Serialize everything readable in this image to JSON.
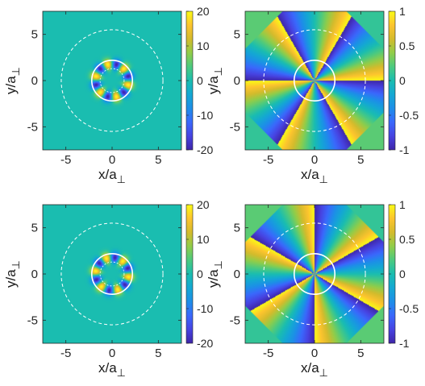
{
  "chart_data": [
    {
      "type": "heatmap",
      "field": "density",
      "xlabel": "x/a",
      "ylabel": "y/a",
      "axis_subscript": "⊥",
      "xlim": [
        -7.5,
        7.5
      ],
      "ylim": [
        -7.5,
        7.5
      ],
      "xticks": [
        -5,
        0,
        5
      ],
      "yticks": [
        -5,
        0,
        5
      ],
      "clim": [
        -20,
        20
      ],
      "colorbar_ticks": [
        20,
        10,
        0,
        -10,
        -20
      ],
      "lobes": 6,
      "ring_radius": 1.8,
      "phase_deg": 90,
      "solid_circle_radius": 2.2,
      "dashed_circle_radius": 5.5,
      "inner_dashed_radius": 1.3,
      "colormap": "parula"
    },
    {
      "type": "heatmap",
      "field": "phase",
      "xlabel": "x/a",
      "ylabel": "y/a",
      "axis_subscript": "⊥",
      "xlim": [
        -7.5,
        7.5
      ],
      "ylim": [
        -7.5,
        7.5
      ],
      "xticks": [
        -5,
        0,
        5
      ],
      "yticks": [
        -5,
        0,
        5
      ],
      "clim": [
        -1,
        1
      ],
      "colorbar_ticks": [
        1,
        0.5,
        0,
        -0.5,
        -1
      ],
      "branches": 6,
      "rotation_deg": 0,
      "solid_circle_radius": 2.2,
      "dashed_circle_radius": 5.5,
      "colormap": "parula"
    },
    {
      "type": "heatmap",
      "field": "density",
      "xlabel": "x/a",
      "ylabel": "y/a",
      "axis_subscript": "⊥",
      "xlim": [
        -7.5,
        7.5
      ],
      "ylim": [
        -7.5,
        7.5
      ],
      "xticks": [
        -5,
        0,
        5
      ],
      "yticks": [
        -5,
        0,
        5
      ],
      "clim": [
        -20,
        20
      ],
      "colorbar_ticks": [
        20,
        10,
        0,
        -10,
        -20
      ],
      "lobes": 6,
      "ring_radius": 1.8,
      "phase_deg": 60,
      "solid_circle_radius": 2.2,
      "dashed_circle_radius": 5.5,
      "inner_dashed_radius": 1.3,
      "colormap": "parula"
    },
    {
      "type": "heatmap",
      "field": "phase",
      "xlabel": "x/a",
      "ylabel": "y/a",
      "axis_subscript": "⊥",
      "xlim": [
        -7.5,
        7.5
      ],
      "ylim": [
        -7.5,
        7.5
      ],
      "xticks": [
        -5,
        0,
        5
      ],
      "yticks": [
        -5,
        0,
        5
      ],
      "clim": [
        -1,
        1
      ],
      "colorbar_ticks": [
        1,
        0.5,
        0,
        -0.5,
        -1
      ],
      "branches": 6,
      "rotation_deg": 30,
      "solid_circle_radius": 2.2,
      "dashed_circle_radius": 5.5,
      "colormap": "parula"
    }
  ]
}
